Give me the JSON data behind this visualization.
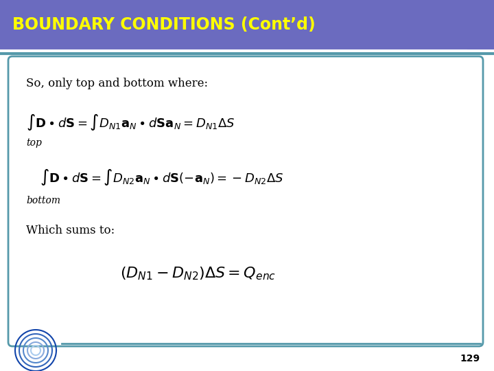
{
  "title": "BOUNDARY CONDITIONS (Cont’d)",
  "title_bg_color": "#6B6BBF",
  "title_text_color": "#ffff00",
  "slide_bg_color": "#ffffff",
  "border_color": "#5599AA",
  "text_intro": "So, only top and bottom where:",
  "text_sums": "Which sums to:",
  "label_top": "top",
  "label_bottom": "bottom",
  "page_num": "129",
  "figsize": [
    7.2,
    5.4
  ],
  "dpi": 100
}
